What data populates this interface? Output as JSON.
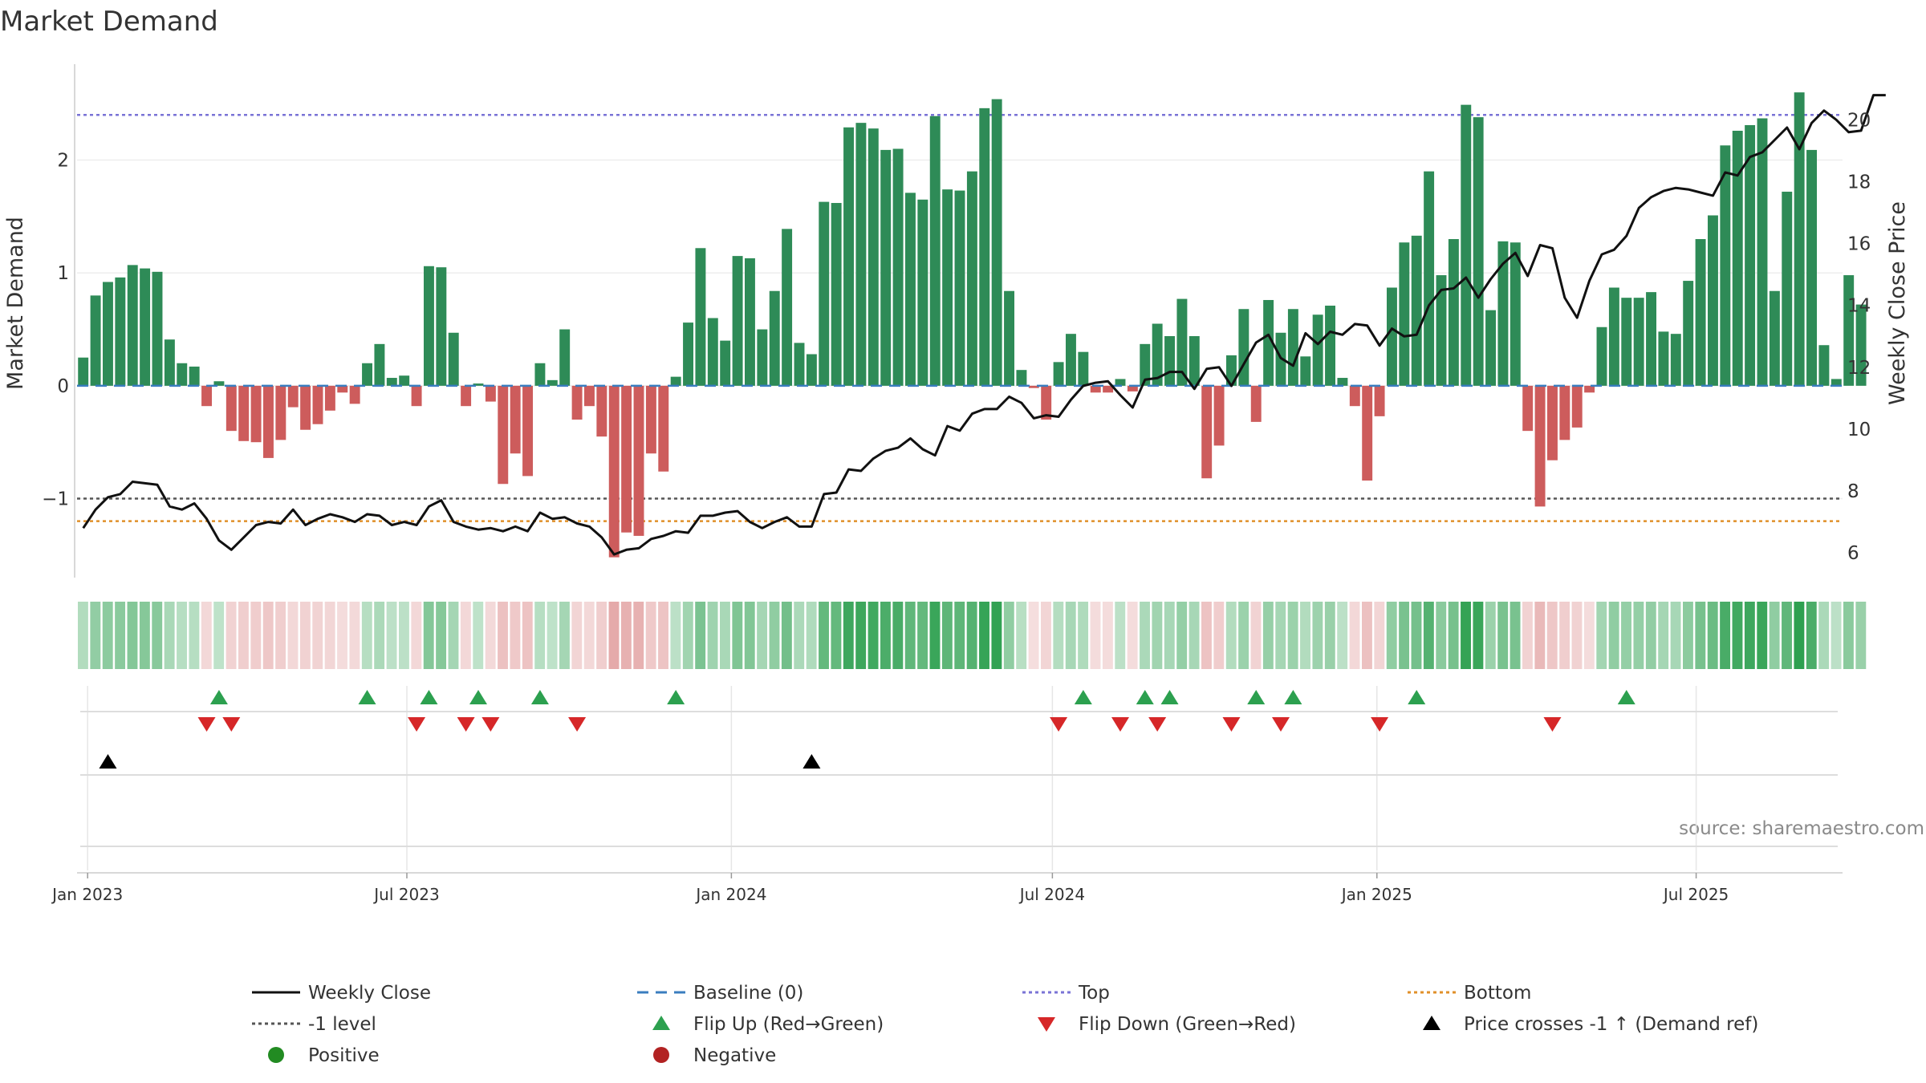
{
  "chart_data": {
    "type": "bar",
    "title": "Market Demand",
    "ylabel": "Market Demand",
    "y2label": "Weekly Close Price",
    "ylim": [
      -1.7,
      2.85
    ],
    "y2lim": [
      5.2,
      21.8
    ],
    "yticks": [
      "−1",
      "0",
      "1",
      "2"
    ],
    "yticks_values": [
      -1,
      0,
      1,
      2
    ],
    "y2ticks": [
      6,
      8,
      10,
      12,
      14,
      16,
      18,
      20
    ],
    "reference_lines": {
      "baseline": 0,
      "top": 2.4,
      "minus_one": -1,
      "bottom": -1.2
    },
    "x_range": [
      "2022-12-26",
      "2025-09-22"
    ],
    "x_ticks": [
      {
        "date": "2023-01-01",
        "label": "Jan 2023"
      },
      {
        "date": "2023-07-01",
        "label": "Jul 2023"
      },
      {
        "date": "2024-01-01",
        "label": "Jan 2024"
      },
      {
        "date": "2024-07-01",
        "label": "Jul 2024"
      },
      {
        "date": "2025-01-01",
        "label": "Jan 2025"
      },
      {
        "date": "2025-07-01",
        "label": "Jul 2025"
      }
    ],
    "start_date": "2022-12-26",
    "week_step_days": 7,
    "demand": [
      0.25,
      0.8,
      0.92,
      0.96,
      1.07,
      1.04,
      1.01,
      0.41,
      0.2,
      0.17,
      -0.18,
      0.04,
      -0.4,
      -0.49,
      -0.5,
      -0.64,
      -0.48,
      -0.19,
      -0.39,
      -0.34,
      -0.22,
      -0.06,
      -0.16,
      0.2,
      0.37,
      0.07,
      0.09,
      -0.18,
      1.06,
      1.05,
      0.47,
      -0.18,
      0.02,
      -0.14,
      -0.87,
      -0.6,
      -0.8,
      0.2,
      0.05,
      0.5,
      -0.3,
      -0.18,
      -0.45,
      -1.52,
      -1.3,
      -1.33,
      -0.6,
      -0.76,
      0.08,
      0.56,
      1.22,
      0.6,
      0.4,
      1.15,
      1.13,
      0.5,
      0.84,
      1.39,
      0.38,
      0.28,
      1.63,
      1.62,
      2.29,
      2.33,
      2.28,
      2.09,
      2.1,
      1.71,
      1.65,
      2.39,
      1.74,
      1.73,
      1.9,
      2.46,
      2.54,
      0.84,
      0.14,
      -0.02,
      -0.3,
      0.21,
      0.46,
      0.3,
      -0.06,
      -0.06,
      0.06,
      -0.05,
      0.37,
      0.55,
      0.44,
      0.77,
      0.44,
      -0.82,
      -0.53,
      0.27,
      0.68,
      -0.32,
      0.76,
      0.47,
      0.68,
      0.26,
      0.63,
      0.71,
      0.07,
      -0.18,
      -0.84,
      -0.27,
      0.87,
      1.27,
      1.33,
      1.9,
      0.98,
      1.3,
      2.49,
      2.38,
      0.67,
      1.28,
      1.27,
      -0.4,
      -1.07,
      -0.66,
      -0.48,
      -0.37,
      -0.06,
      0.52,
      0.87,
      0.78,
      0.78,
      0.83,
      0.48,
      0.46,
      0.93,
      1.3,
      1.51,
      2.13,
      2.26,
      2.31,
      2.37,
      0.84,
      1.72,
      2.6,
      2.09,
      0.36,
      0.06,
      0.98,
      0.72
    ],
    "close": [
      6.8,
      7.4,
      7.8,
      7.9,
      8.3,
      8.25,
      8.2,
      7.5,
      7.4,
      7.6,
      7.1,
      6.4,
      6.1,
      6.5,
      6.9,
      7.0,
      6.95,
      7.4,
      6.9,
      7.1,
      7.25,
      7.15,
      7.0,
      7.25,
      7.2,
      6.9,
      7.0,
      6.9,
      7.5,
      7.7,
      7.0,
      6.85,
      6.75,
      6.8,
      6.7,
      6.85,
      6.7,
      7.3,
      7.1,
      7.15,
      6.95,
      6.85,
      6.5,
      5.95,
      6.1,
      6.15,
      6.45,
      6.55,
      6.7,
      6.65,
      7.2,
      7.2,
      7.3,
      7.35,
      7.0,
      6.8,
      7.0,
      7.15,
      6.85,
      6.85,
      7.9,
      7.95,
      8.7,
      8.65,
      9.05,
      9.3,
      9.4,
      9.7,
      9.35,
      9.15,
      10.1,
      9.95,
      10.5,
      10.65,
      10.65,
      11.05,
      10.85,
      10.35,
      10.45,
      10.4,
      10.95,
      11.4,
      11.5,
      11.55,
      11.1,
      10.7,
      11.6,
      11.65,
      11.85,
      11.85,
      11.3,
      11.95,
      12.0,
      11.4,
      12.1,
      12.8,
      13.05,
      12.3,
      12.05,
      13.1,
      12.75,
      13.15,
      13.05,
      13.4,
      13.35,
      12.7,
      13.25,
      13.0,
      13.05,
      14.0,
      14.5,
      14.55,
      14.9,
      14.25,
      14.85,
      15.35,
      15.7,
      14.95,
      15.95,
      15.85,
      14.25,
      13.6,
      14.8,
      15.65,
      15.8,
      16.25,
      17.15,
      17.5,
      17.7,
      17.8,
      17.75,
      17.65,
      17.55,
      18.3,
      18.2,
      18.8,
      18.95,
      19.35,
      19.75,
      19.05,
      19.9,
      20.3,
      20.0,
      19.6,
      19.65,
      20.8,
      20.8
    ],
    "flip_up_weeks": [
      11,
      23,
      28,
      32,
      37,
      48,
      81,
      86,
      88,
      95,
      98,
      108,
      125
    ],
    "flip_down_weeks": [
      10,
      12,
      27,
      31,
      33,
      40,
      79,
      84,
      87,
      93,
      97,
      105,
      119
    ],
    "price_cross_weeks": [
      2,
      59
    ],
    "legend": [
      {
        "label": "Weekly Close",
        "kind": "line",
        "color": "#111111",
        "dash": ""
      },
      {
        "label": "Baseline (0)",
        "kind": "line",
        "color": "#3a7dbf",
        "dash": "14,9"
      },
      {
        "label": "Top",
        "kind": "line",
        "color": "#7a73d6",
        "dash": "4,4"
      },
      {
        "label": "Bottom",
        "kind": "line",
        "color": "#e0902a",
        "dash": "4,4"
      },
      {
        "label": "-1 level",
        "kind": "line",
        "color": "#555555",
        "dash": "4,4"
      },
      {
        "label": "Flip Up (Red→Green)",
        "kind": "tri-up",
        "color": "#2ca04f"
      },
      {
        "label": "Flip Down (Green→Red)",
        "kind": "tri-down",
        "color": "#d62728"
      },
      {
        "label": "Price crosses -1 ↑ (Demand ref)",
        "kind": "tri-up",
        "color": "#000000"
      },
      {
        "label": "Positive",
        "kind": "dot",
        "color": "#228b22"
      },
      {
        "label": "Negative",
        "kind": "dot",
        "color": "#b22222"
      }
    ],
    "colors": {
      "positive_bar": "#2e8b57",
      "negative_bar": "#cd5c5c",
      "close_line": "#111111",
      "baseline": "#3a7dbf",
      "top": "#7a73d6",
      "bottom": "#e0902a",
      "minus_one": "#555555",
      "grid": "#e6e6e6",
      "axis": "#cccccc"
    }
  },
  "source": "source: sharemaestro.com"
}
